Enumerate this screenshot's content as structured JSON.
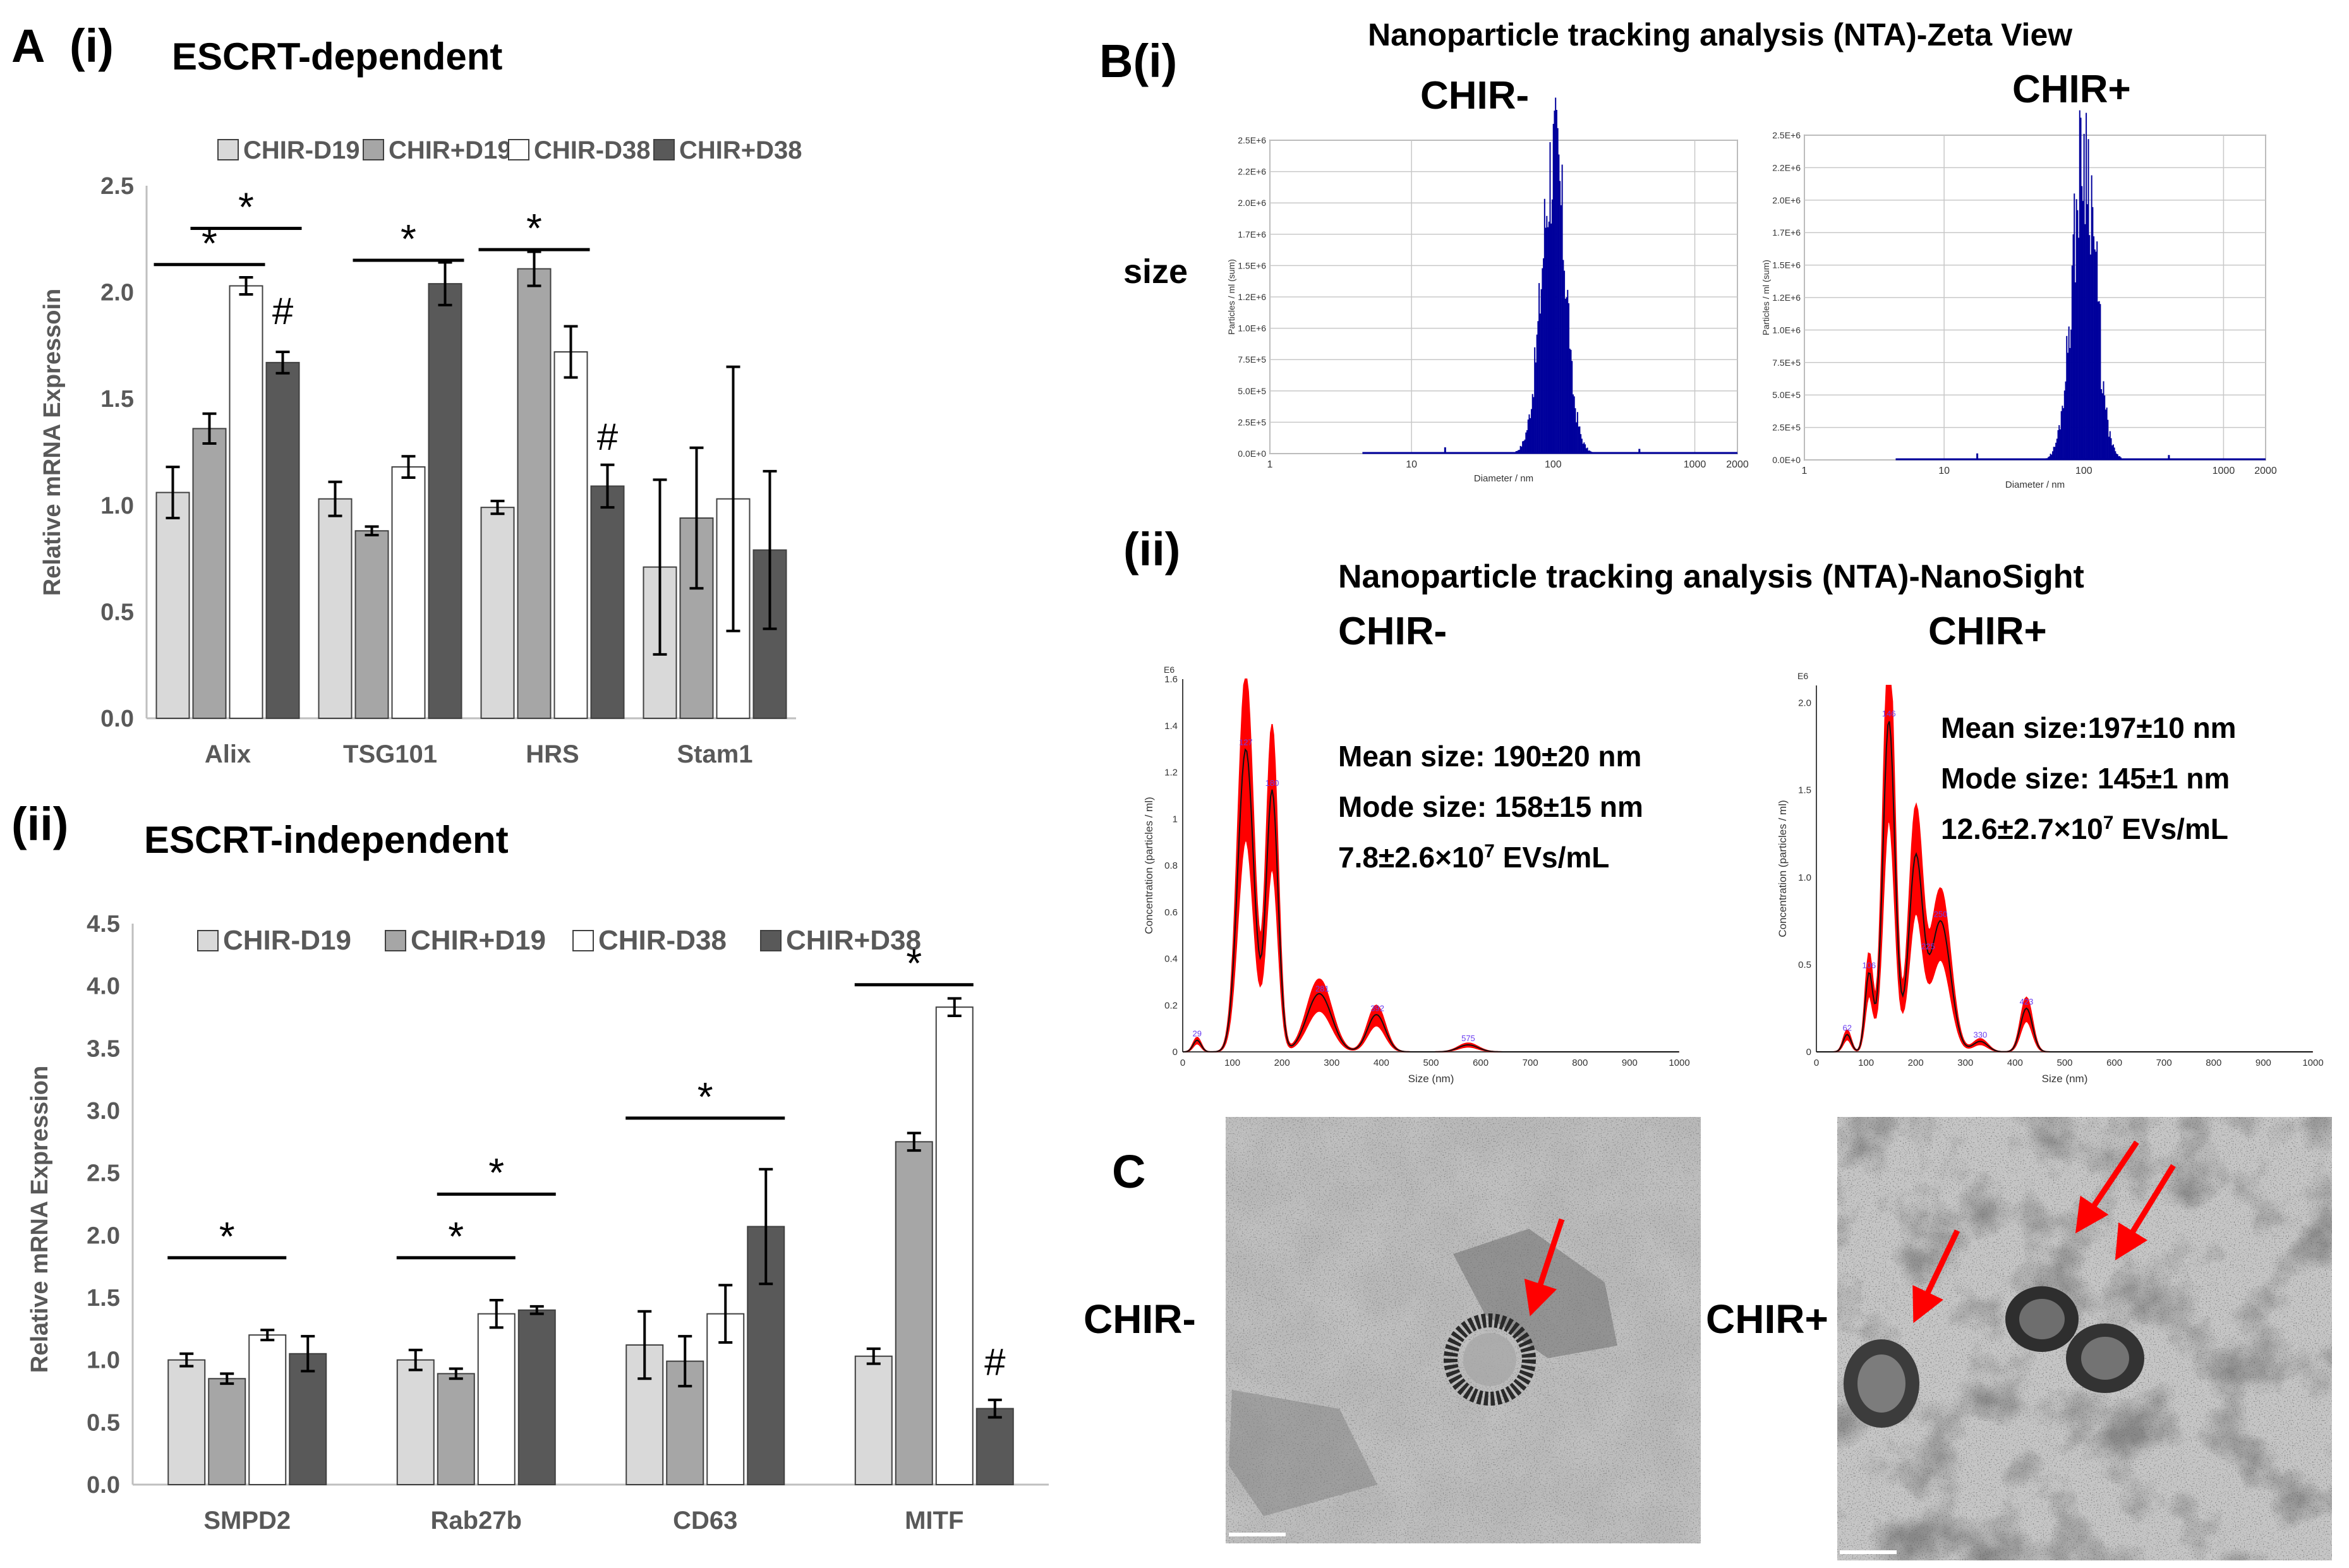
{
  "panels": {
    "A": "A",
    "A_i": "(i)",
    "A_ii": "(ii)",
    "B": "B(i)",
    "B_ii": "(ii)",
    "C": "C"
  },
  "colors": {
    "s1": "#d9d9d9",
    "s2": "#a6a6a6",
    "s3": "#ffffff",
    "s4": "#595959",
    "blue": "#00009c",
    "red": "#ff0000"
  },
  "chart_data": [
    {
      "id": "A_i",
      "type": "bar",
      "title": "ESCRT-dependent",
      "ylabel": "Relative mRNA Expressoin",
      "xlabel": "",
      "ylim": [
        0,
        2.5
      ],
      "yticks": [
        "0.0",
        "0.5",
        "1.0",
        "1.5",
        "2.0",
        "2.5"
      ],
      "categories": [
        "Alix",
        "TSG101",
        "HRS",
        "Stam1"
      ],
      "series": [
        {
          "name": "CHIR-D19",
          "values": [
            1.06,
            1.03,
            0.99,
            0.71
          ],
          "errors": [
            0.12,
            0.08,
            0.03,
            0.41
          ]
        },
        {
          "name": "CHIR+D19",
          "values": [
            1.36,
            0.88,
            2.11,
            0.94
          ],
          "errors": [
            0.07,
            0.02,
            0.08,
            0.33
          ]
        },
        {
          "name": "CHIR-D38",
          "values": [
            2.03,
            1.18,
            1.72,
            1.03
          ],
          "errors": [
            0.04,
            0.05,
            0.12,
            0.62
          ]
        },
        {
          "name": "CHIR+D38",
          "values": [
            1.67,
            2.04,
            1.09,
            0.79
          ],
          "errors": [
            0.05,
            0.1,
            0.1,
            0.37
          ]
        }
      ],
      "significance": [
        {
          "text": "*",
          "category": 0,
          "from": 0,
          "to": 2,
          "y": 2.13
        },
        {
          "text": "*",
          "category": 0,
          "from": 1,
          "to": 3,
          "y": 2.3
        },
        {
          "text": "*",
          "category": 1,
          "from": 1,
          "to": 3,
          "y": 2.15
        },
        {
          "text": "*",
          "category": 2,
          "from": 0,
          "to": 2,
          "y": 2.2
        }
      ],
      "hash_marks": [
        {
          "text": "#",
          "category": 0,
          "series": 3,
          "y": 1.85
        },
        {
          "text": "#",
          "category": 2,
          "series": 3,
          "y": 1.26
        }
      ]
    },
    {
      "id": "A_ii",
      "type": "bar",
      "title": "ESCRT-independent",
      "ylabel": "Relative mRNA Expression",
      "xlabel": "",
      "ylim": [
        0,
        4.5
      ],
      "yticks": [
        "0.0",
        "0.5",
        "1.0",
        "1.5",
        "2.0",
        "2.5",
        "3.0",
        "3.5",
        "4.0",
        "4.5"
      ],
      "categories": [
        "SMPD2",
        "Rab27b",
        "CD63",
        "MITF"
      ],
      "series": [
        {
          "name": "CHIR-D19",
          "values": [
            1.0,
            1.0,
            1.12,
            1.03
          ],
          "errors": [
            0.05,
            0.08,
            0.27,
            0.06
          ]
        },
        {
          "name": "CHIR+D19",
          "values": [
            0.85,
            0.89,
            0.99,
            2.75
          ],
          "errors": [
            0.04,
            0.04,
            0.2,
            0.07
          ]
        },
        {
          "name": "CHIR-D38",
          "values": [
            1.2,
            1.37,
            1.37,
            3.83
          ],
          "errors": [
            0.04,
            0.11,
            0.23,
            0.07
          ]
        },
        {
          "name": "CHIR+D38",
          "values": [
            1.05,
            1.4,
            2.07,
            0.61
          ],
          "errors": [
            0.14,
            0.03,
            0.46,
            0.07
          ]
        }
      ],
      "significance": [
        {
          "text": "*",
          "category": 0,
          "from": 0,
          "to": 2,
          "y": 1.82
        },
        {
          "text": "*",
          "category": 1,
          "from": 0,
          "to": 2,
          "y": 1.82
        },
        {
          "text": "*",
          "category": 1,
          "from": 1,
          "to": 3,
          "y": 2.33
        },
        {
          "text": "*",
          "category": 2,
          "from": 0,
          "to": 3,
          "y": 2.94
        },
        {
          "text": "*",
          "category": 3,
          "from": 0,
          "to": 2,
          "y": 4.01
        }
      ],
      "hash_marks": [
        {
          "text": "#",
          "category": 3,
          "series": 3,
          "y": 0.88
        }
      ]
    }
  ],
  "legend_a_i": [
    "CHIR-D19",
    "CHIR+D19",
    "CHIR-D38",
    "CHIR+D38"
  ],
  "legend_a_ii": [
    "CHIR-D19",
    "CHIR+D19",
    "CHIR-D38",
    "CHIR+D38"
  ],
  "zeta": {
    "heading": "Nanoparticle tracking analysis (NTA)-Zeta View",
    "row_label": "size",
    "xlabel": "Diameter / nm",
    "ylabel": "Particles / ml (sum)",
    "xticks": [
      "1",
      "10",
      "100",
      "1000",
      "2000"
    ],
    "yticks": [
      "0.0E+0",
      "2.5E+5",
      "5.0E+5",
      "7.5E+5",
      "1.0E+6",
      "1.2E+6",
      "1.5E+6",
      "1.7E+6",
      "2.0E+6",
      "2.2E+6",
      "2.5E+6"
    ],
    "left_title": "CHIR-",
    "right_title": "CHIR+"
  },
  "nanosight": {
    "heading": "Nanoparticle tracking analysis (NTA)-NanoSight",
    "xlabel": "Size (nm)",
    "ylabel": "Concentration (particles / ml)",
    "xticks": [
      "0",
      "100",
      "200",
      "300",
      "400",
      "500",
      "600",
      "700",
      "800",
      "900",
      "1000"
    ],
    "unit": "E6",
    "left": {
      "title": "CHIR-",
      "yticks": [
        "0",
        "0.2",
        "0.4",
        "0.6",
        "0.8",
        "1",
        "1.2",
        "1.4",
        "1.6"
      ],
      "ymax": 1.6,
      "stats": [
        "Mean size: 190±20 nm",
        "Mode size: 158±15 nm",
        "7.8±2.6×10"
      ],
      "exp": "7",
      "stats_tail": " EVs/mL",
      "peak_labels": [
        "29",
        "127",
        "180",
        "281",
        "392",
        "575"
      ]
    },
    "right": {
      "title": "CHIR+",
      "yticks": [
        "0",
        "0.5",
        "1.0",
        "1.5",
        "2.0"
      ],
      "ymax": 2.1,
      "stats": [
        "Mean size:197±10 nm",
        "Mode size: 145±1 nm",
        "12.6±2.7×10"
      ],
      "exp": "7",
      "stats_tail": " EVs/mL",
      "peak_labels": [
        "62",
        "106",
        "146",
        "225",
        "250",
        "330",
        "423"
      ]
    }
  },
  "tem": {
    "left_label": "CHIR-",
    "right_label": "CHIR+"
  }
}
